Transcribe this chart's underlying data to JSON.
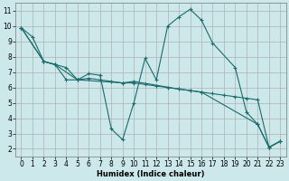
{
  "title": "",
  "xlabel": "Humidex (Indice chaleur)",
  "bg_color": "#cce8ea",
  "grid_color": "#b0b0b0",
  "line_color": "#1a6b6b",
  "xlim": [
    -0.5,
    23.5
  ],
  "ylim": [
    1.5,
    11.5
  ],
  "xticks": [
    0,
    1,
    2,
    3,
    4,
    5,
    6,
    7,
    8,
    9,
    10,
    11,
    12,
    13,
    14,
    15,
    16,
    17,
    18,
    19,
    20,
    21,
    22,
    23
  ],
  "yticks": [
    2,
    3,
    4,
    5,
    6,
    7,
    8,
    9,
    10,
    11
  ],
  "lines": [
    {
      "x": [
        0,
        1,
        2,
        3,
        4,
        5,
        6,
        7,
        8,
        9,
        10,
        11,
        12,
        13,
        14,
        15,
        16,
        17,
        18,
        19,
        20,
        21,
        22,
        23
      ],
      "y": [
        9.9,
        9.3,
        7.7,
        7.5,
        7.3,
        6.5,
        6.6,
        6.5,
        6.4,
        6.3,
        6.3,
        6.2,
        6.1,
        6.0,
        5.9,
        5.8,
        5.7,
        5.6,
        5.5,
        5.4,
        5.3,
        5.2,
        2.1,
        2.5
      ]
    },
    {
      "x": [
        0,
        2,
        3,
        5,
        6,
        7,
        8,
        9,
        10,
        11,
        12,
        13,
        14,
        15,
        16,
        17,
        19,
        20,
        21,
        22,
        23
      ],
      "y": [
        9.9,
        7.7,
        7.5,
        6.5,
        6.9,
        6.8,
        3.3,
        2.6,
        5.0,
        7.9,
        6.5,
        10.0,
        10.6,
        11.1,
        10.4,
        8.9,
        7.3,
        4.4,
        3.6,
        2.1,
        2.5
      ]
    },
    {
      "x": [
        0,
        2,
        3,
        4,
        5,
        9,
        10,
        14,
        15,
        16,
        21,
        22,
        23
      ],
      "y": [
        9.9,
        7.7,
        7.5,
        6.5,
        6.5,
        6.3,
        6.4,
        5.9,
        5.8,
        5.7,
        3.6,
        2.1,
        2.5
      ]
    }
  ]
}
